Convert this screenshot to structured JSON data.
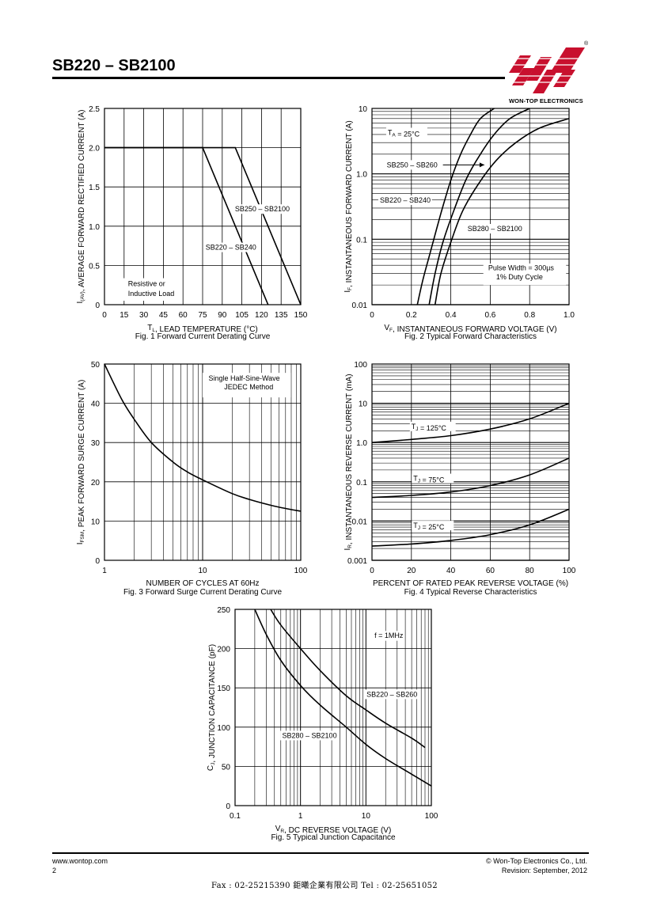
{
  "header": {
    "title": "SB220 – SB2100",
    "logo_text": "WON-TOP ELECTRONICS",
    "logo_mark": "®"
  },
  "colors": {
    "ink": "#000000",
    "logo_red": "#c8102e",
    "grid": "#000000"
  },
  "chart_data": [
    {
      "type": "line",
      "id": "fig1",
      "xscale": "linear",
      "yscale": "linear",
      "xlim": [
        0,
        150
      ],
      "ylim": [
        0,
        2.5
      ],
      "xticks": [
        0,
        15,
        30,
        45,
        60,
        75,
        90,
        105,
        120,
        135,
        150
      ],
      "yticks": [
        0,
        0.5,
        1.0,
        1.5,
        2.0,
        2.5
      ],
      "ytick_labels": [
        "0",
        "0.5",
        "1.0",
        "1.5",
        "2.0",
        "2.5"
      ],
      "xlabel": "T_L, LEAD TEMPERATURE (°C)",
      "ylabel": "I_(AV), AVERAGE FORWARD RECTIFIED CURRENT (A)",
      "caption": "Fig. 1 Forward Current Derating Curve",
      "series": [
        {
          "name": "SB220 – SB240",
          "x": [
            0,
            75,
            125
          ],
          "y": [
            2.0,
            2.0,
            0
          ]
        },
        {
          "name": "SB250 – SB2100",
          "x": [
            0,
            100,
            150
          ],
          "y": [
            2.0,
            2.0,
            0
          ]
        }
      ],
      "annotations": [
        "Resistive or",
        "Inductive Load"
      ]
    },
    {
      "type": "line",
      "id": "fig2",
      "xscale": "linear",
      "yscale": "log",
      "xlim": [
        0,
        1.0
      ],
      "ylim": [
        0.01,
        10
      ],
      "xticks": [
        0,
        0.2,
        0.4,
        0.6,
        0.8,
        1.0
      ],
      "xtick_labels": [
        "0",
        "0.2",
        "0.4",
        "0.6",
        "0.8",
        "1.0"
      ],
      "yticks": [
        0.01,
        0.1,
        1.0,
        10
      ],
      "ytick_labels": [
        "0.01",
        "0.1",
        "1.0",
        "10"
      ],
      "xlabel": "V_F, INSTANTANEOUS FORWARD VOLTAGE (V)",
      "ylabel": "I_F, INSTANTANEOUS FORWARD CURRENT (A)",
      "caption": "Fig. 2 Typical Forward Characteristics",
      "series": [
        {
          "name": "SB220 – SB240",
          "x": [
            0.23,
            0.26,
            0.3,
            0.35,
            0.4,
            0.45,
            0.5,
            0.55,
            0.62
          ],
          "y": [
            0.01,
            0.025,
            0.07,
            0.25,
            0.8,
            2.0,
            4.0,
            7.0,
            10
          ]
        },
        {
          "name": "SB250 – SB260",
          "x": [
            0.29,
            0.32,
            0.36,
            0.42,
            0.48,
            0.55,
            0.62,
            0.7,
            0.8
          ],
          "y": [
            0.01,
            0.03,
            0.09,
            0.3,
            0.85,
            2.0,
            4.0,
            7.0,
            10
          ]
        },
        {
          "name": "SB280 – SB2100",
          "x": [
            0.32,
            0.35,
            0.4,
            0.46,
            0.54,
            0.63,
            0.73,
            0.85,
            1.0
          ],
          "y": [
            0.01,
            0.03,
            0.09,
            0.27,
            0.7,
            1.6,
            3.0,
            5.0,
            7.0
          ]
        }
      ],
      "annotations": [
        "T_A = 25°C",
        "Pulse Width = 300µs",
        "1% Duty Cycle"
      ]
    },
    {
      "type": "line",
      "id": "fig3",
      "xscale": "log",
      "yscale": "linear",
      "xlim": [
        1,
        100
      ],
      "ylim": [
        0,
        50
      ],
      "xticks": [
        1,
        10,
        100
      ],
      "yticks": [
        0,
        10,
        20,
        30,
        40,
        50
      ],
      "xlabel": "NUMBER OF CYCLES AT 60Hz",
      "ylabel": "I_FSM, PEAK FORWARD SURGE CURRENT (A)",
      "caption": "Fig. 3 Forward Surge Current Derating Curve",
      "series": [
        {
          "name": "",
          "x": [
            1,
            1.5,
            2,
            3,
            5,
            7,
            10,
            20,
            30,
            50,
            70,
            100
          ],
          "y": [
            50,
            41,
            36,
            30,
            25,
            22.5,
            20.5,
            17,
            15.5,
            14,
            13.2,
            12.5
          ]
        }
      ],
      "annotations": [
        "Single Half-Sine-Wave",
        "JEDEC Method"
      ]
    },
    {
      "type": "line",
      "id": "fig4",
      "xscale": "linear",
      "yscale": "log",
      "xlim": [
        0,
        100
      ],
      "ylim": [
        0.001,
        100
      ],
      "xticks": [
        0,
        20,
        40,
        60,
        80,
        100
      ],
      "yticks": [
        0.001,
        0.01,
        0.1,
        1.0,
        10,
        100
      ],
      "ytick_labels": [
        "0.001",
        "0.01",
        "0.1",
        "1.0",
        "10",
        "100"
      ],
      "xlabel": "PERCENT OF RATED PEAK REVERSE VOLTAGE (%)",
      "ylabel": "I_R, INSTANTANEOUS REVERSE CURRENT (mA)",
      "caption": "Fig. 4 Typical Reverse Characteristics",
      "series": [
        {
          "name": "T_J = 125°C",
          "x": [
            0,
            20,
            40,
            60,
            80,
            100
          ],
          "y": [
            1.0,
            1.2,
            1.5,
            2.2,
            4.0,
            10
          ]
        },
        {
          "name": "T_J = 75°C",
          "x": [
            0,
            20,
            40,
            60,
            80,
            100
          ],
          "y": [
            0.04,
            0.045,
            0.055,
            0.08,
            0.15,
            0.4
          ]
        },
        {
          "name": "T_J = 25°C",
          "x": [
            0,
            20,
            40,
            60,
            80,
            100
          ],
          "y": [
            0.0023,
            0.0026,
            0.0032,
            0.0045,
            0.008,
            0.02
          ]
        }
      ]
    },
    {
      "type": "line",
      "id": "fig5",
      "xscale": "log",
      "yscale": "linear",
      "xlim": [
        0.1,
        100
      ],
      "ylim": [
        0,
        250
      ],
      "xticks": [
        0.1,
        1,
        10,
        100
      ],
      "xtick_labels": [
        "0.1",
        "1",
        "10",
        "100"
      ],
      "yticks": [
        0,
        50,
        100,
        150,
        200,
        250
      ],
      "xlabel": "V_R, DC REVERSE VOLTAGE (V)",
      "ylabel": "C_J, JUNCTION CAPACITANCE (pF)",
      "caption": "Fig. 5 Typical Junction Capacitance",
      "series": [
        {
          "name": "SB220 – SB260",
          "x": [
            0.35,
            0.5,
            1,
            2,
            5,
            10,
            20,
            50,
            80
          ],
          "y": [
            250,
            230,
            200,
            172,
            140,
            122,
            105,
            86,
            74
          ]
        },
        {
          "name": "SB280 – SB2100",
          "x": [
            0.2,
            0.3,
            0.5,
            1,
            2,
            5,
            10,
            20,
            50,
            100
          ],
          "y": [
            250,
            218,
            185,
            153,
            128,
            100,
            78,
            60,
            40,
            25
          ]
        }
      ],
      "annotations": [
        "f = 1MHz"
      ]
    }
  ],
  "footer": {
    "url": "www.wontop.com",
    "page": "2",
    "copyright": "© Won-Top Electronics Co., Ltd.",
    "revision": "Revision: September, 2012",
    "fax_line": "Fax : 02-25215390     鉅曦企業有限公司     Tel : 02-25651052"
  }
}
